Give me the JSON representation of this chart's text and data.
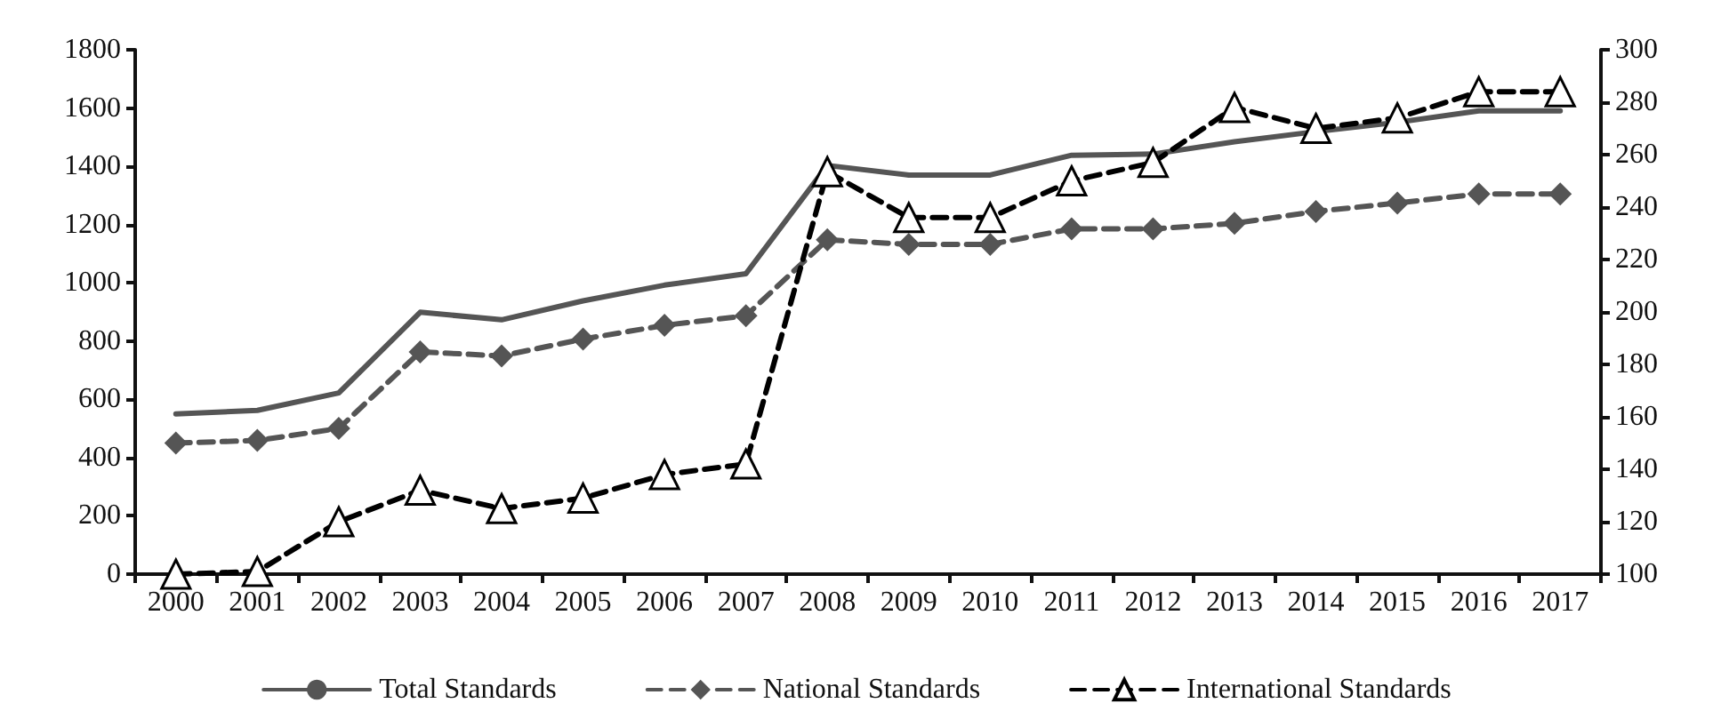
{
  "chart_data": {
    "type": "line",
    "categories": [
      "2000",
      "2001",
      "2002",
      "2003",
      "2004",
      "2005",
      "2006",
      "2007",
      "2008",
      "2009",
      "2010",
      "2011",
      "2012",
      "2013",
      "2014",
      "2015",
      "2016",
      "2017"
    ],
    "series": [
      {
        "name": "Total Standards",
        "color": "#555555",
        "line_style": "solid",
        "marker": "none",
        "values": [
          550,
          562,
          622,
          899,
          873,
          938,
          992,
          1031,
          1403,
          1370,
          1370,
          1438,
          1442,
          1484,
          1519,
          1551,
          1590,
          1590
        ]
      },
      {
        "name": "National Standards",
        "color": "#555555",
        "line_style": "dashed",
        "marker": "diamond",
        "values": [
          450,
          459,
          500,
          763,
          749,
          807,
          854,
          887,
          1148,
          1132,
          1132,
          1185,
          1185,
          1204,
          1245,
          1274,
          1305,
          1305
        ]
      },
      {
        "name": "International Standards",
        "color": "#000000",
        "line_style": "dashed",
        "marker": "triangle",
        "axis": "y2",
        "values": [
          100,
          101,
          120,
          132,
          125,
          129,
          138,
          142,
          253.5,
          236,
          236,
          250,
          257,
          278,
          270,
          274,
          284,
          284
        ]
      }
    ],
    "ylim": [
      0,
      1800
    ],
    "yticks": [
      0,
      200,
      400,
      600,
      800,
      1000,
      1200,
      1400,
      1600,
      1800
    ],
    "y2lim": [
      100,
      300
    ],
    "y2ticks": [
      100,
      120,
      140,
      160,
      180,
      200,
      220,
      240,
      260,
      280,
      300
    ],
    "grid": false,
    "legend": "bottom"
  }
}
